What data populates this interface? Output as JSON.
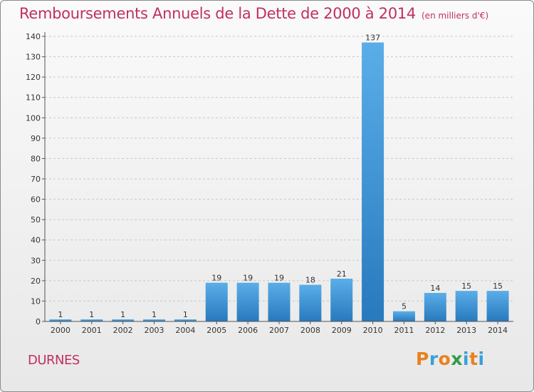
{
  "header": {
    "title": "Remboursements Annuels de la Dette de 2000 à 2014",
    "unit": "(en milliers d'€)"
  },
  "footer": {
    "commune": "DURNES",
    "logo": {
      "text": "Proxiti",
      "letter_colors": [
        "#e8821e",
        "#3aa0d8",
        "#e8821e",
        "#2f9c4a",
        "#3aa0d8",
        "#e8821e",
        "#3aa0d8"
      ]
    }
  },
  "colors": {
    "title": "#c0305e",
    "bar_top": "#5aaee8",
    "bar_bottom": "#2879bd"
  },
  "chart_data": {
    "type": "bar",
    "title": "Remboursements Annuels de la Dette de 2000 à 2014",
    "subtitle": "(en milliers d'€)",
    "categories": [
      "2000",
      "2001",
      "2002",
      "2003",
      "2004",
      "2005",
      "2006",
      "2007",
      "2008",
      "2009",
      "2010",
      "2011",
      "2012",
      "2013",
      "2014"
    ],
    "values": [
      1,
      1,
      1,
      1,
      1,
      19,
      19,
      19,
      18,
      21,
      137,
      5,
      14,
      15,
      15
    ],
    "ylim": [
      0,
      140
    ],
    "yticks": [
      0,
      10,
      20,
      30,
      40,
      50,
      60,
      70,
      80,
      90,
      100,
      110,
      120,
      130,
      140
    ],
    "grid": true,
    "legend": "none"
  }
}
